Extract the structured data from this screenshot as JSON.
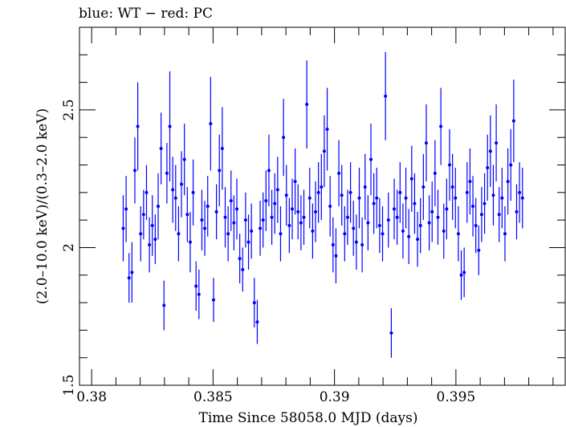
{
  "chart_data": {
    "type": "scatter",
    "title": "blue: WT − red: PC",
    "xlabel": "Time Since 58058.0 MJD (days)",
    "ylabel": "(2.0–10.0 keV)/(0.3–2.0 keV)",
    "xlim": [
      0.3795,
      0.3995
    ],
    "ylim": [
      1.5,
      2.8
    ],
    "xticks": [
      0.38,
      0.385,
      0.39,
      0.395
    ],
    "xtick_labels": [
      "0.38",
      "0.385",
      "0.39",
      "0.395"
    ],
    "yticks": [
      1.5,
      2,
      2.5
    ],
    "ytick_labels": [
      "1.5",
      "2",
      "2.5"
    ],
    "grid": false,
    "series": [
      {
        "name": "WT",
        "color": "#0000ff",
        "x": [
          0.3813,
          0.38142,
          0.38154,
          0.38166,
          0.38178,
          0.3819,
          0.38202,
          0.38214,
          0.38226,
          0.38238,
          0.3825,
          0.38262,
          0.38274,
          0.38286,
          0.38298,
          0.3831,
          0.38322,
          0.38334,
          0.38346,
          0.38358,
          0.3837,
          0.38382,
          0.38394,
          0.38406,
          0.38418,
          0.3843,
          0.38442,
          0.38454,
          0.38466,
          0.38478,
          0.3849,
          0.38502,
          0.38514,
          0.38526,
          0.38538,
          0.3855,
          0.38562,
          0.38574,
          0.38586,
          0.38598,
          0.3861,
          0.38622,
          0.38634,
          0.38646,
          0.38658,
          0.3867,
          0.38682,
          0.38694,
          0.38706,
          0.38718,
          0.3873,
          0.38742,
          0.38754,
          0.38766,
          0.38778,
          0.3879,
          0.38802,
          0.38814,
          0.38826,
          0.38838,
          0.3885,
          0.38862,
          0.38874,
          0.38886,
          0.38898,
          0.3891,
          0.38922,
          0.38934,
          0.38946,
          0.38958,
          0.3897,
          0.38982,
          0.38994,
          0.39006,
          0.39018,
          0.3903,
          0.39042,
          0.39054,
          0.39066,
          0.39078,
          0.3909,
          0.39102,
          0.39114,
          0.39126,
          0.39138,
          0.3915,
          0.39162,
          0.39174,
          0.39186,
          0.39198,
          0.3921,
          0.39222,
          0.39234,
          0.39246,
          0.39258,
          0.3927,
          0.39282,
          0.39294,
          0.39306,
          0.39318,
          0.3933,
          0.39342,
          0.39354,
          0.39366,
          0.39378,
          0.3939,
          0.39402,
          0.39414,
          0.39426,
          0.39438,
          0.3945,
          0.39462,
          0.39474,
          0.39486,
          0.39498,
          0.3951,
          0.39522,
          0.39534,
          0.39546,
          0.39558,
          0.3957,
          0.39582,
          0.39594,
          0.39606,
          0.39618,
          0.3963,
          0.39642,
          0.39654,
          0.39666,
          0.39678,
          0.3969,
          0.39702,
          0.39714,
          0.39726,
          0.39738,
          0.3975,
          0.39762,
          0.39774
        ],
        "y": [
          2.07,
          2.14,
          1.89,
          1.91,
          2.28,
          2.44,
          2.05,
          2.12,
          2.2,
          2.01,
          2.08,
          2.03,
          2.15,
          2.36,
          1.79,
          2.27,
          2.44,
          2.21,
          2.18,
          2.05,
          2.23,
          2.32,
          2.12,
          2.02,
          2.2,
          1.86,
          1.83,
          2.1,
          2.07,
          2.15,
          2.45,
          1.81,
          2.13,
          2.28,
          2.36,
          2.11,
          2.05,
          2.17,
          2.09,
          2.14,
          1.96,
          1.92,
          2.1,
          2.02,
          2.06,
          1.8,
          1.73,
          2.07,
          2.1,
          2.17,
          2.28,
          2.11,
          2.16,
          2.21,
          2.05,
          2.4,
          2.19,
          2.08,
          2.14,
          2.24,
          2.13,
          2.09,
          2.11,
          2.52,
          2.18,
          2.06,
          2.13,
          2.2,
          2.22,
          2.35,
          2.43,
          2.15,
          2.01,
          1.97,
          2.27,
          2.19,
          2.05,
          2.11,
          2.2,
          2.07,
          2.02,
          2.18,
          2.01,
          2.22,
          2.09,
          2.32,
          2.16,
          2.18,
          2.08,
          2.05,
          2.55,
          2.1,
          1.69,
          2.14,
          2.11,
          2.2,
          2.06,
          2.18,
          2.04,
          2.25,
          2.16,
          2.03,
          2.08,
          2.22,
          2.38,
          2.09,
          2.13,
          2.27,
          2.11,
          2.44,
          2.06,
          2.14,
          2.3,
          2.22,
          2.18,
          2.05,
          1.9,
          1.91,
          2.2,
          2.24,
          2.15,
          2.08,
          1.99,
          2.12,
          2.16,
          2.29,
          2.35,
          2.19,
          2.38,
          2.12,
          2.18,
          2.05,
          2.24,
          2.3,
          2.46,
          2.13,
          2.2,
          2.18
        ],
        "yerr": [
          0.12,
          0.12,
          0.09,
          0.11,
          0.12,
          0.16,
          0.1,
          0.09,
          0.1,
          0.1,
          0.11,
          0.09,
          0.12,
          0.13,
          0.09,
          0.11,
          0.2,
          0.12,
          0.12,
          0.1,
          0.12,
          0.13,
          0.1,
          0.11,
          0.12,
          0.09,
          0.09,
          0.11,
          0.1,
          0.11,
          0.17,
          0.08,
          0.1,
          0.13,
          0.15,
          0.11,
          0.1,
          0.11,
          0.1,
          0.11,
          0.09,
          0.08,
          0.1,
          0.1,
          0.1,
          0.09,
          0.08,
          0.1,
          0.1,
          0.11,
          0.13,
          0.1,
          0.11,
          0.12,
          0.1,
          0.14,
          0.11,
          0.1,
          0.11,
          0.12,
          0.1,
          0.1,
          0.1,
          0.16,
          0.11,
          0.1,
          0.11,
          0.11,
          0.12,
          0.13,
          0.15,
          0.11,
          0.1,
          0.1,
          0.12,
          0.11,
          0.1,
          0.1,
          0.11,
          0.1,
          0.1,
          0.11,
          0.1,
          0.12,
          0.1,
          0.13,
          0.11,
          0.11,
          0.1,
          0.1,
          0.16,
          0.1,
          0.09,
          0.11,
          0.1,
          0.11,
          0.1,
          0.11,
          0.1,
          0.12,
          0.11,
          0.1,
          0.1,
          0.12,
          0.14,
          0.1,
          0.11,
          0.12,
          0.1,
          0.14,
          0.1,
          0.11,
          0.13,
          0.12,
          0.11,
          0.1,
          0.09,
          0.09,
          0.11,
          0.12,
          0.11,
          0.1,
          0.09,
          0.1,
          0.11,
          0.12,
          0.13,
          0.11,
          0.14,
          0.1,
          0.11,
          0.1,
          0.12,
          0.13,
          0.15,
          0.1,
          0.11,
          0.11
        ]
      }
    ]
  }
}
